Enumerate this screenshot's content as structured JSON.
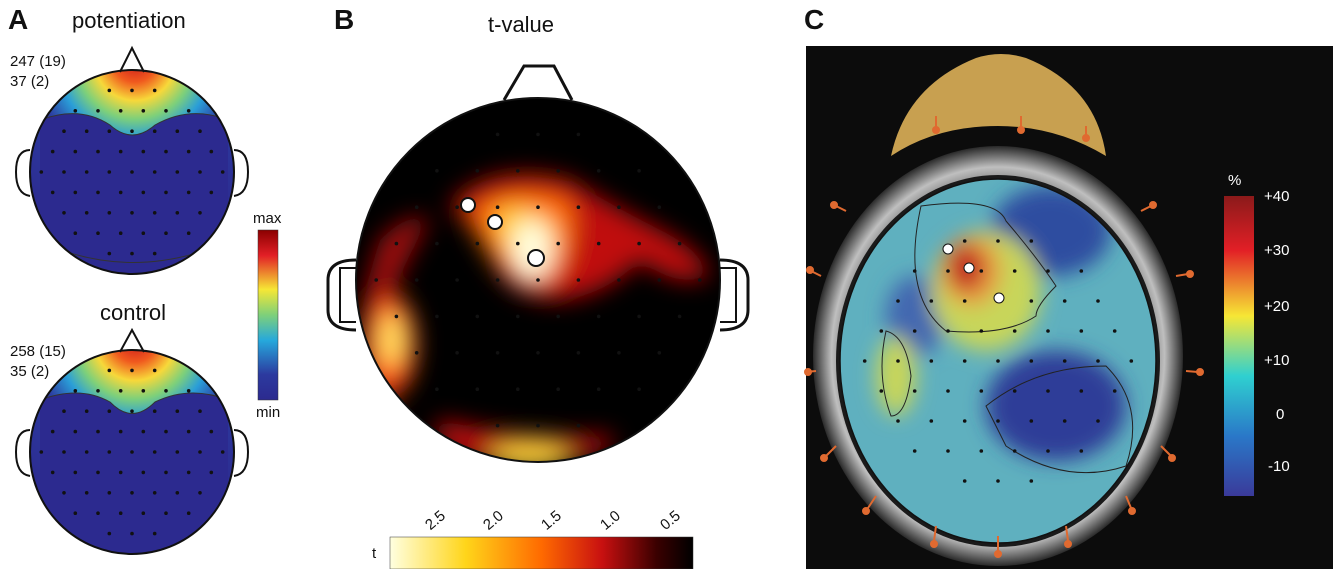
{
  "panel_a": {
    "letter": "A",
    "top": {
      "title": "potentiation",
      "stat1": "247 (19)",
      "stat2": "37 (2)"
    },
    "bottom": {
      "title": "control",
      "stat1": "258 (15)",
      "stat2": "35 (2)"
    },
    "colorbar": {
      "max_label": "max",
      "min_label": "min"
    }
  },
  "panel_b": {
    "letter": "B",
    "title": "t-value",
    "colorbar": {
      "axis_label": "t",
      "ticks": [
        "2.5",
        "2.0",
        "1.5",
        "1.0",
        "0.5"
      ]
    }
  },
  "panel_c": {
    "letter": "C",
    "colorbar": {
      "unit": "%",
      "ticks": [
        "+40",
        "+30",
        "+20",
        "+10",
        "0",
        "-10"
      ]
    }
  },
  "colors": {
    "hot_peak": "#ffffe0",
    "hot_mid": "#ff3a00",
    "jet_max": "#8b0000",
    "jet_min": "#2c2a8f",
    "background_dark": "#0c0c0c"
  }
}
